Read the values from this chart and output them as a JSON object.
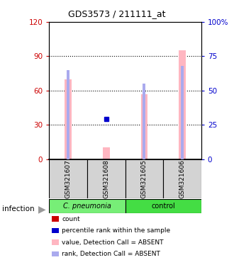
{
  "title": "GDS3573 / 211111_at",
  "samples": [
    "GSM321607",
    "GSM321608",
    "GSM321605",
    "GSM321606"
  ],
  "groups": [
    [
      "C. pneumonia",
      0,
      2
    ],
    [
      "control",
      2,
      4
    ]
  ],
  "group_colors": [
    "#77EE77",
    "#44DD44"
  ],
  "bar_values_absent": [
    70,
    10,
    57,
    95
  ],
  "rank_values_absent": [
    65,
    null,
    55,
    68
  ],
  "percentile_present": [
    null,
    29,
    null,
    null
  ],
  "ylim_left": [
    0,
    120
  ],
  "ylim_right": [
    0,
    100
  ],
  "yticks_left": [
    0,
    30,
    60,
    90,
    120
  ],
  "yticks_right": [
    0,
    25,
    50,
    75,
    100
  ],
  "ytick_labels_left": [
    "0",
    "30",
    "60",
    "90",
    "120"
  ],
  "ytick_labels_right": [
    "0",
    "25",
    "50",
    "75",
    "100%"
  ],
  "left_axis_color": "#CC0000",
  "right_axis_color": "#0000CC",
  "absent_bar_color": "#FFB6C1",
  "absent_rank_color": "#AAAAEE",
  "present_rank_color": "#0000CC",
  "legend_items": [
    {
      "color": "#CC0000",
      "label": "count"
    },
    {
      "color": "#0000CC",
      "label": "percentile rank within the sample"
    },
    {
      "color": "#FFB6C1",
      "label": "value, Detection Call = ABSENT"
    },
    {
      "color": "#AAAAEE",
      "label": "rank, Detection Call = ABSENT"
    }
  ]
}
